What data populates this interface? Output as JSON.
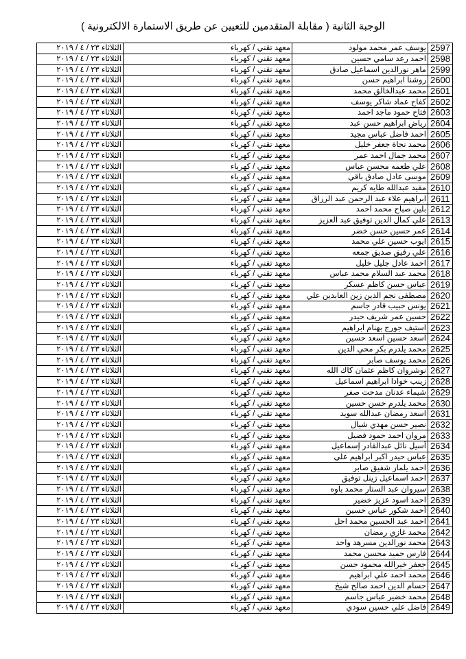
{
  "title": "الوجبة الثانية ( مقابلة المتقدمين للتعيين عن طريق الاستمارة الالكترونية )",
  "default_department": "معهد تقني / كهرباء",
  "default_date": "الثلاثاء ٢٣ / ٤ / ٢٠١٩",
  "rows": [
    {
      "no": "2597",
      "name": "يوسف عمر محمد مولود"
    },
    {
      "no": "2598",
      "name": "احمد رعد سامي حسين"
    },
    {
      "no": "2599",
      "name": "ماهر نورالدين اسماعيل صادق"
    },
    {
      "no": "2600",
      "name": "روشنا ابراهيم حسن"
    },
    {
      "no": "2601",
      "name": "محمد عبدالخالق محمد"
    },
    {
      "no": "2602",
      "name": "كفاح عماد شاكر يوسف"
    },
    {
      "no": "2603",
      "name": "فتاح حمود ماجد احمد"
    },
    {
      "no": "2604",
      "name": "رياض ابراهيم حسن عبد"
    },
    {
      "no": "2605",
      "name": "احمد فاضل عباس مجيد"
    },
    {
      "no": "2606",
      "name": "محمد نجاة جعفر خليل"
    },
    {
      "no": "2607",
      "name": "محمد جمال احمد عمر"
    },
    {
      "no": "2608",
      "name": "علي طعمه محسن عباس"
    },
    {
      "no": "2609",
      "name": "موسى عادل صادق باقي"
    },
    {
      "no": "2610",
      "name": "مفيد عبدالله طايه كريم"
    },
    {
      "no": "2611",
      "name": "ابراهيم علاء عبد الرحمن عبد الرزاق"
    },
    {
      "no": "2612",
      "name": "بلين صباح محمد احمد"
    },
    {
      "no": "2613",
      "name": "علي كمال الدين توفيق عبد العزيز"
    },
    {
      "no": "2614",
      "name": "عمر حسين حسن خضر"
    },
    {
      "no": "2615",
      "name": "ايوب حسين علي محمد"
    },
    {
      "no": "2616",
      "name": "علي رفيق صديق جمعه"
    },
    {
      "no": "2617",
      "name": "احمد عادل جليل خليل"
    },
    {
      "no": "2618",
      "name": "محمد عبد السلام محمد عباس"
    },
    {
      "no": "2619",
      "name": "عباس حسن كاظم عسكر"
    },
    {
      "no": "2620",
      "name": "مصطفى نجم الدين زين العابدين علي"
    },
    {
      "no": "2621",
      "name": "يونس حبيب قادر جاسم"
    },
    {
      "no": "2622",
      "name": "حسين عمر شريف حيدر"
    },
    {
      "no": "2623",
      "name": "استيف جورج بهنام ابراهيم"
    },
    {
      "no": "2624",
      "name": "اسعد حسين اسعد حسين"
    },
    {
      "no": "2625",
      "name": "محمد يلدرم بكر محي الدين"
    },
    {
      "no": "2626",
      "name": "محمد يوسف صابر"
    },
    {
      "no": "2627",
      "name": "نوشروان كاظم عثمان كاك الله"
    },
    {
      "no": "2628",
      "name": "زينب خوادا ابراهيم اسماعيل"
    },
    {
      "no": "2629",
      "name": "شيماء عدنان مدحت صفر"
    },
    {
      "no": "2630",
      "name": "محمد يلدرم حسن حسين"
    },
    {
      "no": "2631",
      "name": "اسعد رمضان عبدالله سويد"
    },
    {
      "no": "2632",
      "name": "نصير حسن مهدي شيال"
    },
    {
      "no": "2633",
      "name": "مروان احمد حمود فضيل"
    },
    {
      "no": "2634",
      "name": "أسيل نائل عبدالقادر إسماعيل"
    },
    {
      "no": "2635",
      "name": "عباس حيدر اكبر ابراهيم علي"
    },
    {
      "no": "2636",
      "name": "احمد يلماز شفيق صابر"
    },
    {
      "no": "2637",
      "name": "احمد اسماعيل زينل توفيق"
    },
    {
      "no": "2638",
      "name": "سيروان عبد الستار محمد باوه"
    },
    {
      "no": "2639",
      "name": "احمد اسود عزيز خضير"
    },
    {
      "no": "2640",
      "name": "أحمد شكور عباس حسين"
    },
    {
      "no": "2641",
      "name": "احمد عبد الحسين محمد احل"
    },
    {
      "no": "2642",
      "name": "محمد غازي رمضان"
    },
    {
      "no": "2643",
      "name": "محمد نورالدين مسرهد واحد"
    },
    {
      "no": "2644",
      "name": "فارس حميد محسن محمد"
    },
    {
      "no": "2645",
      "name": "جعفر خيرالله محمود حسن"
    },
    {
      "no": "2646",
      "name": "محمد احمد علي ابراهيم"
    },
    {
      "no": "2647",
      "name": "حسام الدين احمد صالح شيخ"
    },
    {
      "no": "2648",
      "name": "محمد خضير عباس جاسم"
    },
    {
      "no": "2649",
      "name": "فاضل علي حسين سودي"
    }
  ]
}
